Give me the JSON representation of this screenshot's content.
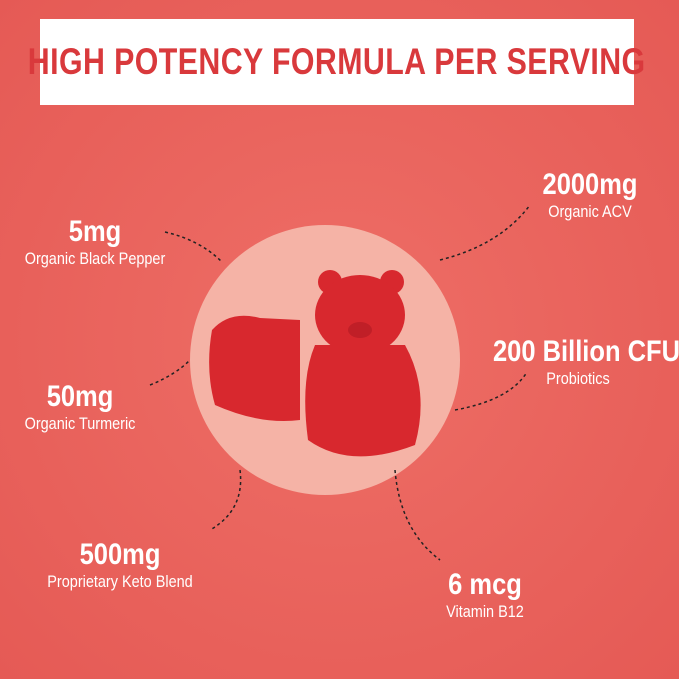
{
  "title": "HIGH POTENCY FORMULA PER SERVING",
  "ingredients": [
    {
      "amount": "5mg",
      "name": "Organic Black Pepper"
    },
    {
      "amount": "2000mg",
      "name": "Organic ACV"
    },
    {
      "amount": "200 Billion CFU",
      "name": "Probiotics"
    },
    {
      "amount": "50mg",
      "name": "Organic Turmeric"
    },
    {
      "amount": "500mg",
      "name": "Proprietary Keto Blend"
    },
    {
      "amount": "6 mcg",
      "name": "Vitamin B12"
    }
  ],
  "colors": {
    "background": "#e9605a",
    "title": "#d9393c",
    "circle": "#f5b3a6",
    "gummy": "#d8282e"
  }
}
